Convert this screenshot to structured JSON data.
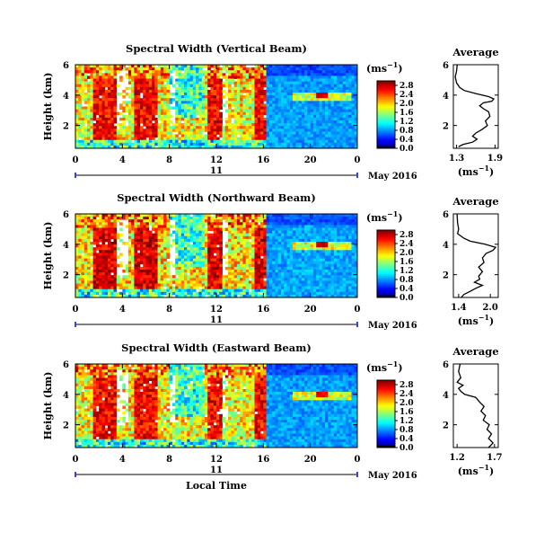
{
  "chart_data": [
    {
      "type": "heatmap",
      "title": "Spectral Width (Vertical Beam)",
      "ylabel": "Height (km)",
      "y_ticks": [
        "2",
        "4",
        "6"
      ],
      "x_ticks": [
        "0",
        "4",
        "8",
        "12",
        "16",
        "20",
        "0"
      ],
      "date_day": "11",
      "date_month": "May 2016",
      "ylim": [
        0.5,
        6
      ],
      "xlim": [
        0,
        24
      ],
      "colorbar": {
        "unit": "(ms",
        "unit_sup": "−1",
        "unit_close": ")",
        "ticks": [
          "0.0",
          "0.4",
          "0.8",
          "1.2",
          "1.6",
          "2.0",
          "2.4",
          "2.8"
        ],
        "range": [
          0,
          3.0
        ]
      },
      "average": {
        "title": "Average",
        "xlabel": "(ms",
        "xlabel_sup": "−1",
        "xlabel_close": ")",
        "x_ticks": [
          "1.3",
          "1.9"
        ],
        "xlim": [
          1.25,
          1.95
        ],
        "y_ticks": [
          "2",
          "4",
          "6"
        ],
        "ylim": [
          0.5,
          6
        ],
        "profile": [
          [
            1.33,
            0.6
          ],
          [
            1.4,
            0.75
          ],
          [
            1.55,
            0.9
          ],
          [
            1.62,
            1.1
          ],
          [
            1.55,
            1.3
          ],
          [
            1.6,
            1.5
          ],
          [
            1.7,
            1.75
          ],
          [
            1.78,
            2.0
          ],
          [
            1.75,
            2.3
          ],
          [
            1.82,
            2.6
          ],
          [
            1.8,
            2.9
          ],
          [
            1.72,
            3.1
          ],
          [
            1.66,
            3.3
          ],
          [
            1.72,
            3.5
          ],
          [
            1.85,
            3.6
          ],
          [
            1.88,
            3.75
          ],
          [
            1.8,
            3.9
          ],
          [
            1.6,
            4.1
          ],
          [
            1.42,
            4.3
          ],
          [
            1.35,
            4.5
          ],
          [
            1.3,
            4.8
          ],
          [
            1.28,
            5.2
          ],
          [
            1.3,
            5.6
          ],
          [
            1.31,
            6.0
          ]
        ]
      }
    },
    {
      "type": "heatmap",
      "title": "Spectral Width (Northward Beam)",
      "ylabel": "Height (km)",
      "y_ticks": [
        "2",
        "4",
        "6"
      ],
      "x_ticks": [
        "0",
        "4",
        "8",
        "12",
        "16",
        "20",
        "0"
      ],
      "date_day": "11",
      "date_month": "May 2016",
      "ylim": [
        0.5,
        6
      ],
      "xlim": [
        0,
        24
      ],
      "colorbar": {
        "unit": "(ms",
        "unit_sup": "−1",
        "unit_close": ")",
        "ticks": [
          "0.0",
          "0.4",
          "0.8",
          "1.2",
          "1.6",
          "2.0",
          "2.4",
          "2.8"
        ],
        "range": [
          0,
          3.0
        ]
      },
      "average": {
        "title": "Average",
        "xlabel": "(ms",
        "xlabel_sup": "−1",
        "xlabel_close": ")",
        "x_ticks": [
          "1.4",
          "2.0"
        ],
        "xlim": [
          1.3,
          2.15
        ],
        "y_ticks": [
          "2",
          "4",
          "6"
        ],
        "ylim": [
          0.5,
          6
        ],
        "profile": [
          [
            1.45,
            0.5
          ],
          [
            1.5,
            0.7
          ],
          [
            1.62,
            0.9
          ],
          [
            1.72,
            1.1
          ],
          [
            1.85,
            1.3
          ],
          [
            1.7,
            1.5
          ],
          [
            1.8,
            1.7
          ],
          [
            1.78,
            1.9
          ],
          [
            1.85,
            2.2
          ],
          [
            1.78,
            2.5
          ],
          [
            1.88,
            2.8
          ],
          [
            1.85,
            3.1
          ],
          [
            1.92,
            3.4
          ],
          [
            2.05,
            3.6
          ],
          [
            2.1,
            3.8
          ],
          [
            1.9,
            4.0
          ],
          [
            1.62,
            4.2
          ],
          [
            1.5,
            4.4
          ],
          [
            1.38,
            4.7
          ],
          [
            1.4,
            5.0
          ],
          [
            1.38,
            5.4
          ],
          [
            1.37,
            6.0
          ]
        ]
      }
    },
    {
      "type": "heatmap",
      "title": "Spectral Width (Eastward Beam)",
      "ylabel": "Height (km)",
      "y_ticks": [
        "2",
        "4",
        "6"
      ],
      "x_ticks": [
        "0",
        "4",
        "8",
        "12",
        "16",
        "20",
        "0"
      ],
      "date_day": "11",
      "date_month": "May 2016",
      "xlabel": "Local Time",
      "ylim": [
        0.5,
        6
      ],
      "xlim": [
        0,
        24
      ],
      "colorbar": {
        "unit": "(ms",
        "unit_sup": "−1",
        "unit_close": ")",
        "ticks": [
          "0.0",
          "0.4",
          "0.8",
          "1.2",
          "1.6",
          "2.0",
          "2.4",
          "2.8"
        ],
        "range": [
          0,
          3.0
        ]
      },
      "average": {
        "title": "Average",
        "xlabel": "(ms",
        "xlabel_sup": "−1",
        "xlabel_close": ")",
        "x_ticks": [
          "1.2",
          "1.7"
        ],
        "xlim": [
          1.15,
          1.75
        ],
        "y_ticks": [
          "2",
          "4",
          "6"
        ],
        "ylim": [
          0.5,
          6
        ],
        "profile": [
          [
            1.62,
            0.5
          ],
          [
            1.68,
            0.8
          ],
          [
            1.62,
            1.1
          ],
          [
            1.66,
            1.4
          ],
          [
            1.6,
            1.7
          ],
          [
            1.63,
            2.0
          ],
          [
            1.55,
            2.3
          ],
          [
            1.58,
            2.6
          ],
          [
            1.52,
            2.9
          ],
          [
            1.56,
            3.2
          ],
          [
            1.5,
            3.5
          ],
          [
            1.45,
            3.8
          ],
          [
            1.3,
            4.0
          ],
          [
            1.25,
            4.2
          ],
          [
            1.22,
            4.4
          ],
          [
            1.28,
            4.6
          ],
          [
            1.2,
            4.8
          ],
          [
            1.25,
            5.1
          ],
          [
            1.22,
            5.5
          ],
          [
            1.24,
            6.0
          ]
        ]
      }
    }
  ]
}
